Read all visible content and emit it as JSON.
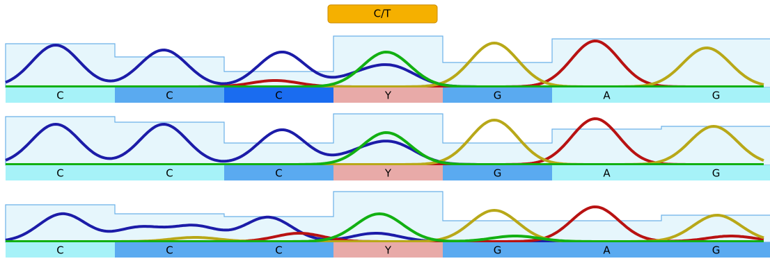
{
  "variant_label": "C/T",
  "tracks": [
    {
      "bases": [
        "C",
        "C",
        "C",
        "Y",
        "G",
        "A",
        "G"
      ]
    },
    {
      "bases": [
        "C",
        "C",
        "C",
        "Y",
        "G",
        "A",
        "G"
      ]
    },
    {
      "bases": [
        "C",
        "C",
        "C",
        "Y",
        "G",
        "A",
        "G"
      ]
    }
  ]
}
